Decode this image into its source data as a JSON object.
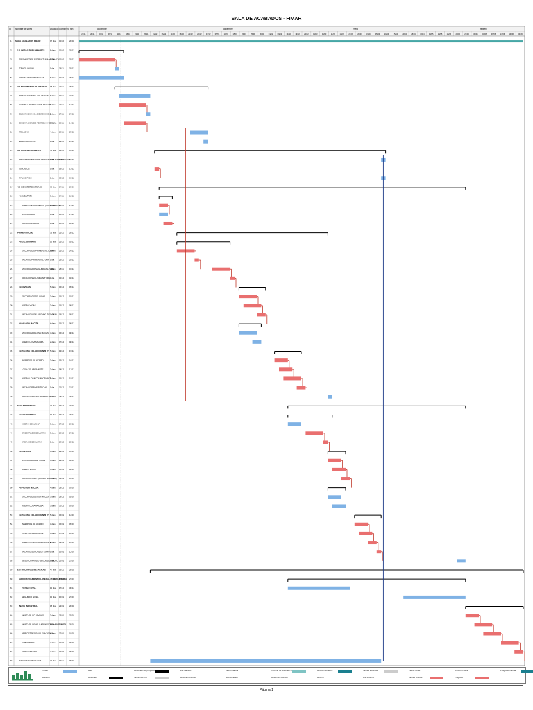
{
  "page": {
    "title": "SALA DE ACABADOS - FIMAR",
    "footer": "Página 1"
  },
  "header": {
    "col_id": "Id",
    "col_name": "Nombre de tarea",
    "col_dur": "Duración",
    "col_start": "Comienzo",
    "col_end": "Fin",
    "months": [
      "diciembre",
      "diciembre",
      "enero",
      "febrero"
    ],
    "days": [
      "23/11",
      "28/11",
      "01/11",
      "06/11",
      "11/11",
      "16/11",
      "21/11",
      "26/11",
      "01/12",
      "06/12",
      "11/12",
      "16/12",
      "21/12",
      "26/12",
      "31/12",
      "05/01",
      "10/01",
      "15/01",
      "20/01",
      "25/01",
      "30/01",
      "04/02",
      "09/02",
      "14/02",
      "19/02",
      "24/02",
      "01/03",
      "06/03",
      "11/03",
      "16/03",
      "21/03",
      "26/03",
      "31/03",
      "05/04",
      "10/04",
      "15/04",
      "20/04",
      "25/04",
      "30/04",
      "05/05",
      "10/05",
      "15/05",
      "20/05",
      "25/05",
      "30/05",
      "04/06",
      "09/06",
      "14/06",
      "19/06",
      "24/06"
    ]
  },
  "chart_data": {
    "type": "gantt",
    "title": "SALA DE ACABADOS - FIMAR",
    "time_axis_units": "days from project start",
    "axis_range": [
      0,
      100
    ],
    "tasks": [
      {
        "id": "1",
        "name": "SALA ACABADOS FIMAR",
        "dur": "97 días",
        "start": "02/10",
        "end": "28/02",
        "level": 0,
        "type": "project",
        "s": 0,
        "e": 100
      },
      {
        "id": "2",
        "name": "1.0 OBRAS PRELIMINARES",
        "dur": "8 días",
        "start": "02/10",
        "end": "29/11",
        "level": 1,
        "type": "summary",
        "s": 0,
        "e": 10
      },
      {
        "id": "3",
        "name": "DESMONTAJE ESTRUCTURA METALICA",
        "dur": "6 días",
        "start": "02/10",
        "end": "29/11",
        "level": 2,
        "type": "crit",
        "s": 0,
        "e": 8
      },
      {
        "id": "4",
        "name": "TRAZO INICIAL",
        "dur": "1 día",
        "start": "28/11",
        "end": "29/11",
        "level": 2,
        "type": "task",
        "s": 8,
        "e": 9
      },
      {
        "id": "5",
        "name": "OBRAS PROVISIONALES",
        "dur": "8 días",
        "start": "02/10",
        "end": "29/11",
        "level": 2,
        "type": "task",
        "s": 0,
        "e": 10
      },
      {
        "id": "6",
        "name": "2.0 MOVIMIENTO DE TIERRAS",
        "dur": "18 días",
        "start": "29/11",
        "end": "29/11",
        "level": 1,
        "type": "summary",
        "s": 8,
        "e": 29
      },
      {
        "id": "7",
        "name": "DEMOLICION DE COLUMNAS",
        "dur": "6 días",
        "start": "02/11",
        "end": "24/11",
        "level": 2,
        "type": "task",
        "s": 9,
        "e": 16
      },
      {
        "id": "8",
        "name": "CORTE Y DEMOLICION DE LOS",
        "dur": "6 días",
        "start": "29/11",
        "end": "12/11",
        "level": 2,
        "type": "crit",
        "s": 9,
        "e": 15
      },
      {
        "id": "9",
        "name": "ELIMINACION 01 (DEMOLICION)",
        "dur": "2 días",
        "start": "27/11",
        "end": "27/11",
        "level": 2,
        "type": "task",
        "s": 15,
        "e": 16
      },
      {
        "id": "10",
        "name": "EXCAVACION DE TERRENO NORMAL",
        "dur": "5 días",
        "start": "10/11",
        "end": "14/11",
        "level": 2,
        "type": "crit",
        "s": 10,
        "e": 15
      },
      {
        "id": "11",
        "name": "RELLENO",
        "dur": "4 días",
        "start": "29/11",
        "end": "29/11",
        "level": 2,
        "type": "task",
        "s": 25,
        "e": 29
      },
      {
        "id": "12",
        "name": "ELIMINACION 02",
        "dur": "1 día",
        "start": "29/11",
        "end": "29/11",
        "level": 2,
        "type": "task",
        "s": 28,
        "e": 29
      },
      {
        "id": "13",
        "name": "3.0 CONCRETO SIMPLE",
        "dur": "52 días",
        "start": "13/11",
        "end": "01/12",
        "level": 1,
        "type": "summary",
        "s": 17,
        "e": 69
      },
      {
        "id": "14",
        "name": "RECUBRIMIENTO DE ARRIOSTRES EN ELEVACION",
        "dur": "1 día",
        "start": "01/12",
        "end": "01/12",
        "level": 2,
        "type": "task",
        "s": 68,
        "e": 69
      },
      {
        "id": "15",
        "name": "SOLADOS",
        "dur": "1 día",
        "start": "13/11",
        "end": "13/11",
        "level": 2,
        "type": "crit",
        "s": 17,
        "e": 18
      },
      {
        "id": "16",
        "name": "FALSO PISO",
        "dur": "1 día",
        "start": "03/12",
        "end": "01/12",
        "level": 2,
        "type": "task",
        "s": 68,
        "e": 69
      },
      {
        "id": "17",
        "name": "4.0 CONCRETO ARMADO",
        "dur": "69 días",
        "start": "14/11",
        "end": "23/01",
        "level": 1,
        "type": "summary",
        "s": 18,
        "e": 87
      },
      {
        "id": "18",
        "name": "4.01 ZAPATA",
        "dur": "3 días",
        "start": "14/11",
        "end": "18/11",
        "level": 2,
        "type": "summary",
        "s": 18,
        "e": 21
      },
      {
        "id": "19",
        "name": "ACERO DE REFUERZO (COLOCACION)",
        "dur": "2 días",
        "start": "14/11",
        "end": "17/11",
        "level": 3,
        "type": "crit",
        "s": 18,
        "e": 20
      },
      {
        "id": "20",
        "name": "ENCOFRADO",
        "dur": "1 día",
        "start": "16/11",
        "end": "17/11",
        "level": 3,
        "type": "task",
        "s": 18,
        "e": 20
      },
      {
        "id": "21",
        "name": "VACIADO ZAPATA",
        "dur": "1 día",
        "start": "18/11",
        "end": "18/11",
        "level": 3,
        "type": "crit",
        "s": 19,
        "e": 21
      },
      {
        "id": "22",
        "name": "PRIMER TECHO",
        "dur": "35 días",
        "start": "21/11",
        "end": "28/12",
        "level": 1,
        "type": "summary",
        "s": 22,
        "e": 56
      },
      {
        "id": "23",
        "name": "4.02 COLUMNAS",
        "dur": "12 días",
        "start": "21/11",
        "end": "02/12",
        "level": 2,
        "type": "summary",
        "s": 22,
        "e": 34
      },
      {
        "id": "24",
        "name": "ENCOFRADO PRIMERA ALTURA",
        "dur": "3 días",
        "start": "21/11",
        "end": "24/11",
        "level": 3,
        "type": "crit",
        "s": 22,
        "e": 26
      },
      {
        "id": "25",
        "name": "VACIADO PRIMERA ALTURA",
        "dur": "1 día",
        "start": "25/11",
        "end": "25/11",
        "level": 3,
        "type": "crit",
        "s": 26,
        "e": 27
      },
      {
        "id": "26",
        "name": "ENCOFRADO SEGUNDA ALTURA",
        "dur": "3 días",
        "start": "28/11",
        "end": "01/12",
        "level": 3,
        "type": "crit",
        "s": 30,
        "e": 34
      },
      {
        "id": "27",
        "name": "VACIADO SEGUNDA ALTURA",
        "dur": "1 día",
        "start": "02/12",
        "end": "02/12",
        "level": 3,
        "type": "crit",
        "s": 34,
        "e": 35
      },
      {
        "id": "28",
        "name": "4.03 VIGAS",
        "dur": "5 días",
        "start": "05/12",
        "end": "09/12",
        "level": 2,
        "type": "summary",
        "s": 36,
        "e": 42
      },
      {
        "id": "29",
        "name": "ENCOFRADO DE VIGAS",
        "dur": "3 días",
        "start": "05/12",
        "end": "07/12",
        "level": 3,
        "type": "crit",
        "s": 36,
        "e": 40
      },
      {
        "id": "30",
        "name": "ACERO VIGAS",
        "dur": "3 días",
        "start": "06/12",
        "end": "08/12",
        "level": 3,
        "type": "crit",
        "s": 37,
        "e": 41
      },
      {
        "id": "31",
        "name": "VACIADO VIGAS (FONDO DE LOSA)",
        "dur": "1 día",
        "start": "09/12",
        "end": "09/12",
        "level": 3,
        "type": "crit",
        "s": 40,
        "e": 42
      },
      {
        "id": "32",
        "name": "4.04 LOSA MACIZA",
        "dur": "4 días",
        "start": "05/12",
        "end": "08/12",
        "level": 2,
        "type": "summary",
        "s": 36,
        "e": 41
      },
      {
        "id": "33",
        "name": "ENCOFRADO LOSA MACIZA",
        "dur": "4 días",
        "start": "05/12",
        "end": "08/12",
        "level": 3,
        "type": "task",
        "s": 36,
        "e": 40
      },
      {
        "id": "34",
        "name": "ACERO LOSA MACIZA",
        "dur": "2 días",
        "start": "07/12",
        "end": "08/12",
        "level": 3,
        "type": "task",
        "s": 39,
        "e": 41
      },
      {
        "id": "35",
        "name": "4.05 LOSA COLABORANTE Y",
        "dur": "5 días",
        "start": "13/12",
        "end": "19/12",
        "level": 2,
        "type": "summary",
        "s": 44,
        "e": 50
      },
      {
        "id": "36",
        "name": "INSERTOS DE ACERO",
        "dur": "3 días",
        "start": "13/12",
        "end": "16/12",
        "level": 3,
        "type": "crit",
        "s": 44,
        "e": 47
      },
      {
        "id": "37",
        "name": "LOSA COLABORANTE",
        "dur": "3 días",
        "start": "14/12",
        "end": "17/12",
        "level": 3,
        "type": "crit",
        "s": 45,
        "e": 48
      },
      {
        "id": "38",
        "name": "ACERO LOSA COLABORANTE",
        "dur": "2 días",
        "start": "15/12",
        "end": "19/12",
        "level": 3,
        "type": "crit",
        "s": 46,
        "e": 50
      },
      {
        "id": "39",
        "name": "VACIADO PRIMER TECHO",
        "dur": "1 día",
        "start": "20/12",
        "end": "21/12",
        "level": 3,
        "type": "crit",
        "s": 49,
        "e": 51
      },
      {
        "id": "40",
        "name": "DESENCOFRADO PRIMER TECHO",
        "dur": "1 día",
        "start": "28/12",
        "end": "28/12",
        "level": 3,
        "type": "task",
        "s": 56,
        "e": 57
      },
      {
        "id": "41",
        "name": "SEGUNDO TECHO",
        "dur": "32 días",
        "start": "17/12",
        "end": "23/01",
        "level": 1,
        "type": "summary",
        "s": 47,
        "e": 87
      },
      {
        "id": "42",
        "name": "4.02 COLUMNAS",
        "dur": "10 días",
        "start": "17/12",
        "end": "28/12",
        "level": 2,
        "type": "summary",
        "s": 47,
        "e": 57
      },
      {
        "id": "43",
        "name": "ACERO COLUMNA",
        "dur": "3 días",
        "start": "17/12",
        "end": "20/12",
        "level": 3,
        "type": "task",
        "s": 47,
        "e": 50
      },
      {
        "id": "44",
        "name": "ENCOFRADO COLUMNA",
        "dur": "3 días",
        "start": "20/12",
        "end": "27/12",
        "level": 3,
        "type": "crit",
        "s": 51,
        "e": 55
      },
      {
        "id": "45",
        "name": "VACIADO COLUMNA",
        "dur": "1 día",
        "start": "28/12",
        "end": "28/12",
        "level": 3,
        "type": "crit",
        "s": 55,
        "e": 56
      },
      {
        "id": "46",
        "name": "4.03 VIGAS",
        "dur": "3 días",
        "start": "29/12",
        "end": "03/01",
        "level": 2,
        "type": "summary",
        "s": 56,
        "e": 60
      },
      {
        "id": "47",
        "name": "ENCOFRADO DE VIGAS",
        "dur": "3 días",
        "start": "29/12",
        "end": "02/01",
        "level": 3,
        "type": "crit",
        "s": 56,
        "e": 59
      },
      {
        "id": "48",
        "name": "ACERO VIGAS",
        "dur": "3 días",
        "start": "30/12",
        "end": "02/01",
        "level": 3,
        "type": "crit",
        "s": 57,
        "e": 60
      },
      {
        "id": "49",
        "name": "VACIADO VIGAS (FONDO DE LOSA)",
        "dur": "1 día",
        "start": "03/01",
        "end": "03/01",
        "level": 3,
        "type": "crit",
        "s": 59,
        "e": 61
      },
      {
        "id": "50",
        "name": "4.04 LOSA MACIZA",
        "dur": "4 días",
        "start": "29/12",
        "end": "03/01",
        "level": 2,
        "type": "summary",
        "s": 56,
        "e": 60
      },
      {
        "id": "51",
        "name": "ENCOFRADO LOSA MACIZA",
        "dur": "3 días",
        "start": "29/12",
        "end": "02/01",
        "level": 3,
        "type": "task",
        "s": 56,
        "e": 59
      },
      {
        "id": "52",
        "name": "ACERO LOSA MACIZA",
        "dur": "3 días",
        "start": "30/12",
        "end": "03/01",
        "level": 3,
        "type": "task",
        "s": 57,
        "e": 60
      },
      {
        "id": "53",
        "name": "4.05 LOSA COLABORANTE Y",
        "dur": "5 días",
        "start": "06/01",
        "end": "12/01",
        "level": 2,
        "type": "summary",
        "s": 62,
        "e": 68
      },
      {
        "id": "54",
        "name": "INSERTOS DE ACERO",
        "dur": "3 días",
        "start": "06/01",
        "end": "09/01",
        "level": 3,
        "type": "crit",
        "s": 62,
        "e": 65
      },
      {
        "id": "55",
        "name": "LOSA COLABORANTE",
        "dur": "3 días",
        "start": "07/01",
        "end": "10/01",
        "level": 3,
        "type": "crit",
        "s": 63,
        "e": 66
      },
      {
        "id": "56",
        "name": "ACERO LOSA COLABORANTE",
        "dur": "2 días",
        "start": "09/01",
        "end": "12/01",
        "level": 3,
        "type": "crit",
        "s": 65,
        "e": 67
      },
      {
        "id": "57",
        "name": "VACIADO SEGUNDO TECHO",
        "dur": "1 día",
        "start": "12/01",
        "end": "12/01",
        "level": 3,
        "type": "crit",
        "s": 67,
        "e": 68
      },
      {
        "id": "58",
        "name": "DESENCOFRADO SEGUNDO TECHO",
        "dur": "1 día",
        "start": "22/01",
        "end": "23/01",
        "level": 3,
        "type": "task",
        "s": 85,
        "e": 87
      },
      {
        "id": "59",
        "name": "ESTRUCTURAS METALICAS",
        "dur": "47 días",
        "start": "03/11",
        "end": "28/02",
        "level": 1,
        "type": "summary",
        "s": 16,
        "e": 100
      },
      {
        "id": "60",
        "name": "ARRIOSTRAMIENTO LATERAL Y ESTRUCTURA",
        "dur": "32 días",
        "start": "17/12",
        "end": "23/01",
        "level": 2,
        "type": "summary",
        "s": 47,
        "e": 87
      },
      {
        "id": "61",
        "name": "PRIMER NIVEL",
        "dur": "12 días",
        "start": "17/12",
        "end": "30/12",
        "level": 3,
        "type": "task",
        "s": 47,
        "e": 61
      },
      {
        "id": "62",
        "name": "SEGUNDO NIVEL",
        "dur": "12 días",
        "start": "10/01",
        "end": "23/01",
        "level": 3,
        "type": "task",
        "s": 73,
        "e": 87
      },
      {
        "id": "63",
        "name": "NAVE INDUSTRIAL",
        "dur": "18 días",
        "start": "23/01",
        "end": "28/02",
        "level": 2,
        "type": "summary",
        "s": 87,
        "e": 100
      },
      {
        "id": "64",
        "name": "MONTAJE COLUMNAS",
        "dur": "3 días",
        "start": "23/01",
        "end": "25/01",
        "level": 3,
        "type": "crit",
        "s": 87,
        "e": 90
      },
      {
        "id": "65",
        "name": "MONTAJE VIGAS Y ARRIOSTRES EN PLANTA",
        "dur": "4 días",
        "start": "25/01",
        "end": "28/01",
        "level": 3,
        "type": "crit",
        "s": 89,
        "e": 93
      },
      {
        "id": "66",
        "name": "ARRIOSTRES EN ELEVACION Y",
        "dur": "4 días",
        "start": "27/01",
        "end": "01/02",
        "level": 3,
        "type": "crit",
        "s": 91,
        "e": 95
      },
      {
        "id": "67",
        "name": "COBERTURA",
        "dur": "4 días",
        "start": "02/02",
        "end": "06/02",
        "level": 3,
        "type": "crit",
        "s": 95,
        "e": 99
      },
      {
        "id": "68",
        "name": "CERRAMIENTO",
        "dur": "4 días",
        "start": "06/02",
        "end": "09/02",
        "level": 3,
        "type": "crit",
        "s": 98,
        "e": 100
      },
      {
        "id": "69",
        "name": "ESCALERA METALICA",
        "dur": "30 días",
        "start": "03/11",
        "end": "09/01",
        "level": 2,
        "type": "task",
        "s": 16,
        "e": 68
      }
    ]
  },
  "legend": [
    {
      "label": "Tarea",
      "kind": "task"
    },
    {
      "label": "Hito",
      "kind": "milestone"
    },
    {
      "label": "Resumen del proyecto",
      "kind": "summary"
    },
    {
      "label": "Hito inactivo",
      "kind": "inactive"
    },
    {
      "label": "Tarea manual",
      "kind": "manual"
    },
    {
      "label": "Informe de resumen manual",
      "kind": "manualsum"
    },
    {
      "label": "solo el comienzo",
      "kind": "start"
    },
    {
      "label": "Tareas externas",
      "kind": "external"
    },
    {
      "label": "Fecha límite",
      "kind": "deadline"
    },
    {
      "label": "División crítica",
      "kind": "critsplit"
    },
    {
      "label": "Progreso manual",
      "kind": "progress"
    },
    {
      "label": "División",
      "kind": "split"
    },
    {
      "label": "Resumen",
      "kind": "summary2"
    },
    {
      "label": "Tarea inactiva",
      "kind": "inactivetask"
    },
    {
      "label": "Resumen inactivo",
      "kind": "inactivesum"
    },
    {
      "label": "solo duración",
      "kind": "duration"
    },
    {
      "label": "Resumen manual",
      "kind": "manual2"
    },
    {
      "label": "solo fin",
      "kind": "end"
    },
    {
      "label": "Hito externo",
      "kind": "extmilestone"
    },
    {
      "label": "Tareas críticas",
      "kind": "crit"
    },
    {
      "label": "Progreso",
      "kind": "prog2"
    }
  ],
  "colors": {
    "task": "#7fb2e5",
    "crit": "#e96f6f",
    "summary": "#000000",
    "project": "#46a7a6",
    "link": "#1f3c88",
    "critlink": "#c0392b",
    "grid": "#cfcfcf",
    "header": "#f2f2f2"
  }
}
